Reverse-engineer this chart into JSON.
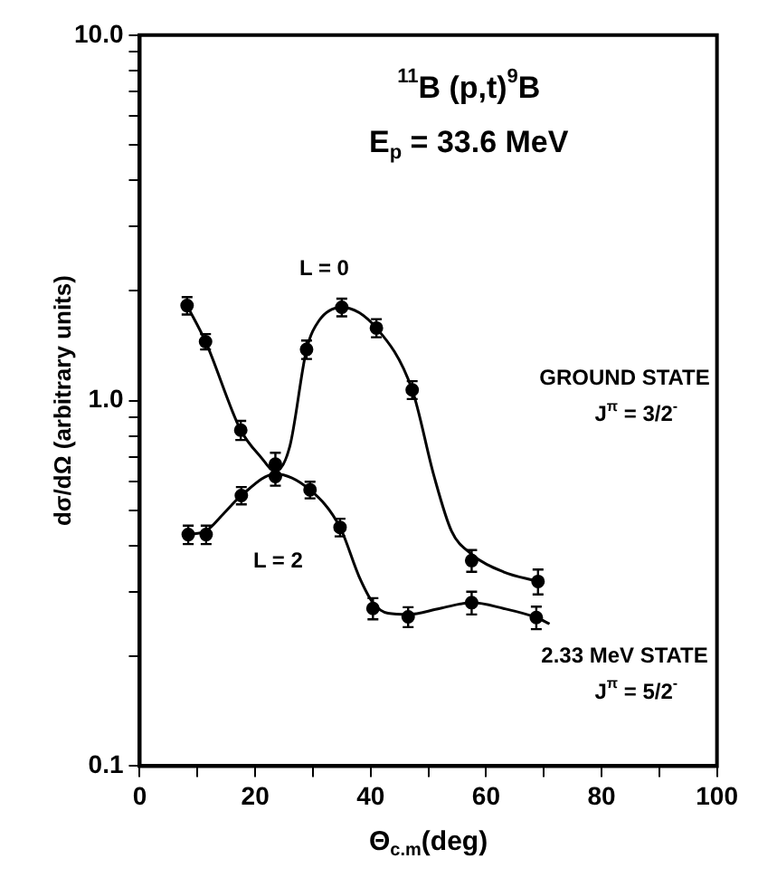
{
  "chart_data": {
    "type": "scatter",
    "title": "$^{11}$B (p,t)$^{9}$B",
    "subtitle": "E$_{p}$ = 33.6 MeV",
    "xlabel": "Θ$_{c.m}$(deg)",
    "ylabel": "dσ/dΩ (arbitrary units)",
    "series": [
      {
        "color": "#000000",
        "x": [
          8.2,
          11.4,
          17.5,
          23.5,
          28.9,
          35,
          41,
          47.2,
          57.5,
          69
        ],
        "values": [
          1.82,
          1.45,
          0.83,
          0.67,
          1.38,
          1.8,
          1.58,
          1.07,
          0.365,
          0.32
        ],
        "errors": [
          0.1,
          0.07,
          0.05,
          0.05,
          0.08,
          0.1,
          0.09,
          0.06,
          0.025,
          0.025
        ]
      },
      {
        "color": "#000000",
        "x": [
          8.4,
          11.5,
          17.6,
          23.5,
          29.5,
          34.7,
          40.4,
          46.5,
          57.5,
          68.7
        ],
        "values": [
          0.43,
          0.43,
          0.55,
          0.62,
          0.57,
          0.45,
          0.27,
          0.256,
          0.28,
          0.255
        ],
        "errors": [
          0.025,
          0.025,
          0.03,
          0.035,
          0.03,
          0.025,
          0.018,
          0.016,
          0.02,
          0.018
        ]
      },
      {
        "type": "line",
        "color": "#000000",
        "marker": "none",
        "x": [
          8.2,
          11.4,
          17.5,
          21,
          23.5,
          26,
          28.9,
          31,
          35,
          41,
          47.2,
          51,
          54,
          57.5,
          63,
          69
        ],
        "values": [
          1.82,
          1.45,
          0.83,
          0.7,
          0.64,
          0.75,
          1.38,
          1.65,
          1.8,
          1.58,
          1.07,
          0.62,
          0.44,
          0.38,
          0.34,
          0.32
        ]
      },
      {
        "type": "line",
        "color": "#000000",
        "marker": "none",
        "x": [
          8.4,
          11.5,
          14.5,
          17.6,
          23.5,
          29.5,
          34.7,
          38,
          40.4,
          43,
          46.5,
          52,
          57.5,
          63,
          68.7,
          71
        ],
        "values": [
          0.43,
          0.44,
          0.49,
          0.55,
          0.63,
          0.57,
          0.45,
          0.33,
          0.28,
          0.262,
          0.26,
          0.27,
          0.28,
          0.27,
          0.255,
          0.245
        ]
      }
    ],
    "annotations": [
      "L = 0",
      "L = 2",
      "GROUND STATE",
      "J$^{π}$ = 3/2$^{-}$",
      "2.33 MeV STATE",
      "J$^{π}$ = 5/2$^{-}$"
    ],
    "xlim": [
      0,
      100
    ],
    "xticks": [
      0,
      {
        "value": 10,
        "label": null
      },
      20,
      {
        "value": 30,
        "label": null
      },
      40,
      {
        "value": 50,
        "label": null
      },
      60,
      {
        "value": 70,
        "label": null
      },
      80,
      {
        "value": 90,
        "label": null
      },
      100
    ],
    "ylim": [
      0.1,
      10
    ],
    "log": true,
    "yticks": [
      {
        "value": 0.1,
        "label": "0.1"
      },
      {
        "value": 0.2,
        "label": null
      },
      {
        "value": 0.3,
        "label": null
      },
      {
        "value": 0.4,
        "label": null
      },
      {
        "value": 0.5,
        "label": null
      },
      {
        "value": 0.6,
        "label": null
      },
      {
        "value": 0.7,
        "label": null
      },
      {
        "value": 0.8,
        "label": null
      },
      {
        "value": 0.9,
        "label": null
      },
      {
        "value": 1,
        "label": "1.0"
      },
      {
        "value": 2,
        "label": null
      },
      {
        "value": 3,
        "label": null
      },
      {
        "value": 4,
        "label": null
      },
      {
        "value": 5,
        "label": null
      },
      {
        "value": 6,
        "label": null
      },
      {
        "value": 7,
        "label": null
      },
      {
        "value": 8,
        "label": null
      },
      {
        "value": 9,
        "label": null
      },
      {
        "value": 10,
        "label": "10.0"
      }
    ],
    "grid": false
  }
}
